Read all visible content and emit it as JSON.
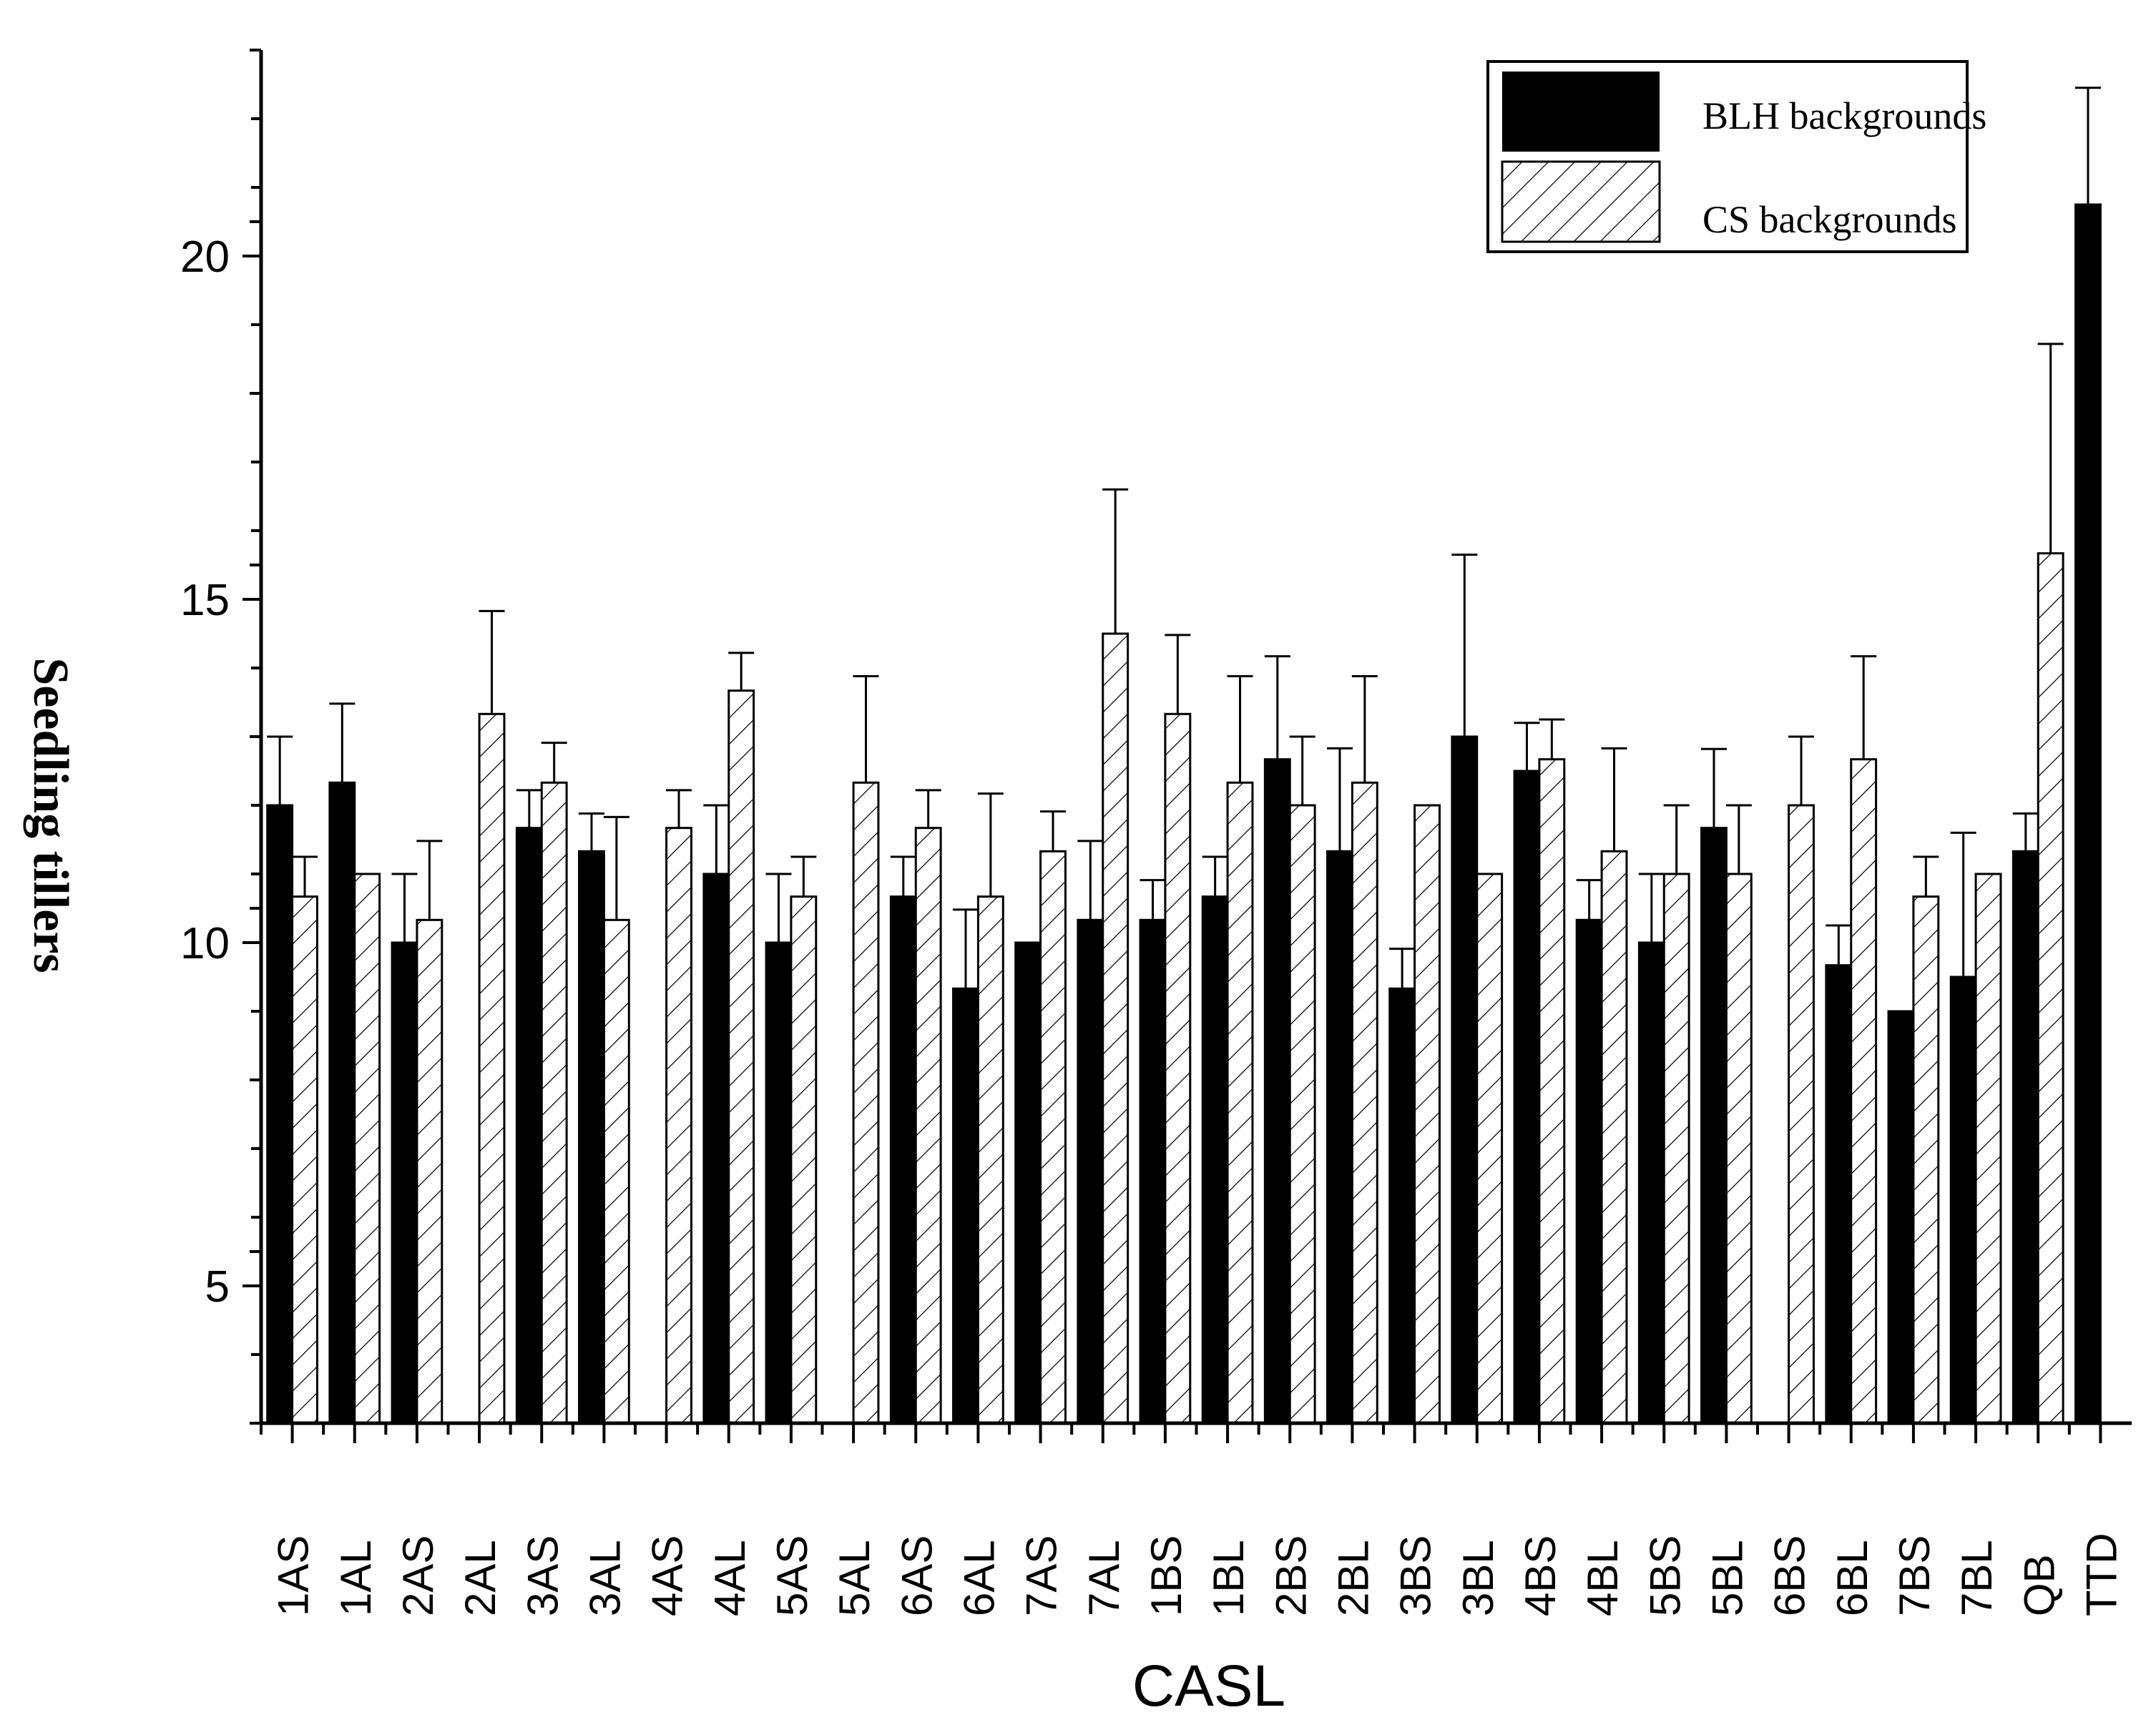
{
  "chart_data": {
    "type": "bar",
    "xlabel": "CASL",
    "ylabel": "Seedling tillers",
    "ylim": [
      3,
      23
    ],
    "yticks": [
      5,
      10,
      15,
      20
    ],
    "grid": false,
    "legend_position": "top-right",
    "categories": [
      "1AS",
      "1AL",
      "2AS",
      "2AL",
      "3AS",
      "3AL",
      "4AS",
      "4AL",
      "5AS",
      "5AL",
      "6AS",
      "6AL",
      "7AS",
      "7AL",
      "1BS",
      "1BL",
      "2BS",
      "2BL",
      "3BS",
      "3BL",
      "4BS",
      "4BL",
      "5BS",
      "5BL",
      "6BS",
      "6BL",
      "7BS",
      "7BL",
      "QB",
      "TTD"
    ],
    "series": [
      {
        "name": "BLH backgrounds",
        "color": "#000000",
        "pattern": "solid",
        "values": [
          12.0,
          12.33,
          10.0,
          null,
          11.67,
          11.33,
          null,
          11.0,
          10.0,
          null,
          10.67,
          9.33,
          10.0,
          10.33,
          10.33,
          10.67,
          12.67,
          11.33,
          9.33,
          13.0,
          12.5,
          10.33,
          10.0,
          11.67,
          null,
          9.67,
          9.0,
          9.5,
          11.33,
          20.75
        ],
        "errors": [
          1.0,
          1.15,
          1.0,
          null,
          0.55,
          0.55,
          null,
          1.0,
          1.0,
          null,
          0.58,
          1.15,
          null,
          1.15,
          0.58,
          0.58,
          1.5,
          1.5,
          0.58,
          2.65,
          0.7,
          0.58,
          1.0,
          1.15,
          null,
          0.58,
          null,
          2.1,
          0.55,
          1.7
        ]
      },
      {
        "name": "CS backgrounds",
        "color": "#ffffff",
        "pattern": "diagonal-hatch",
        "values": [
          10.67,
          11.0,
          10.33,
          13.33,
          12.33,
          10.33,
          11.67,
          13.67,
          10.67,
          12.33,
          11.67,
          10.67,
          11.33,
          14.5,
          13.33,
          12.33,
          12.0,
          12.33,
          12.0,
          11.0,
          12.67,
          11.33,
          11.0,
          11.0,
          12.0,
          12.67,
          10.67,
          11.0,
          null,
          null
        ],
        "errors": [
          0.58,
          null,
          1.15,
          1.5,
          0.58,
          1.5,
          0.55,
          0.55,
          0.58,
          1.55,
          0.55,
          1.5,
          0.58,
          2.1,
          1.15,
          1.55,
          1.0,
          1.55,
          null,
          null,
          0.58,
          1.5,
          1.0,
          1.0,
          1.0,
          1.5,
          0.58,
          null,
          null,
          null
        ]
      },
      {
        "name": "",
        "color": "#ffffff",
        "pattern": "diagonal-hatch",
        "note_category": "QB",
        "values": [
          null,
          null,
          null,
          null,
          null,
          null,
          null,
          null,
          null,
          null,
          null,
          null,
          null,
          null,
          null,
          null,
          null,
          null,
          null,
          null,
          null,
          null,
          null,
          null,
          null,
          null,
          null,
          null,
          15.67,
          null
        ],
        "errors": [
          null,
          null,
          null,
          null,
          null,
          null,
          null,
          null,
          null,
          null,
          null,
          null,
          null,
          null,
          null,
          null,
          null,
          null,
          null,
          null,
          null,
          null,
          null,
          null,
          null,
          null,
          null,
          null,
          3.05,
          null
        ]
      }
    ]
  }
}
